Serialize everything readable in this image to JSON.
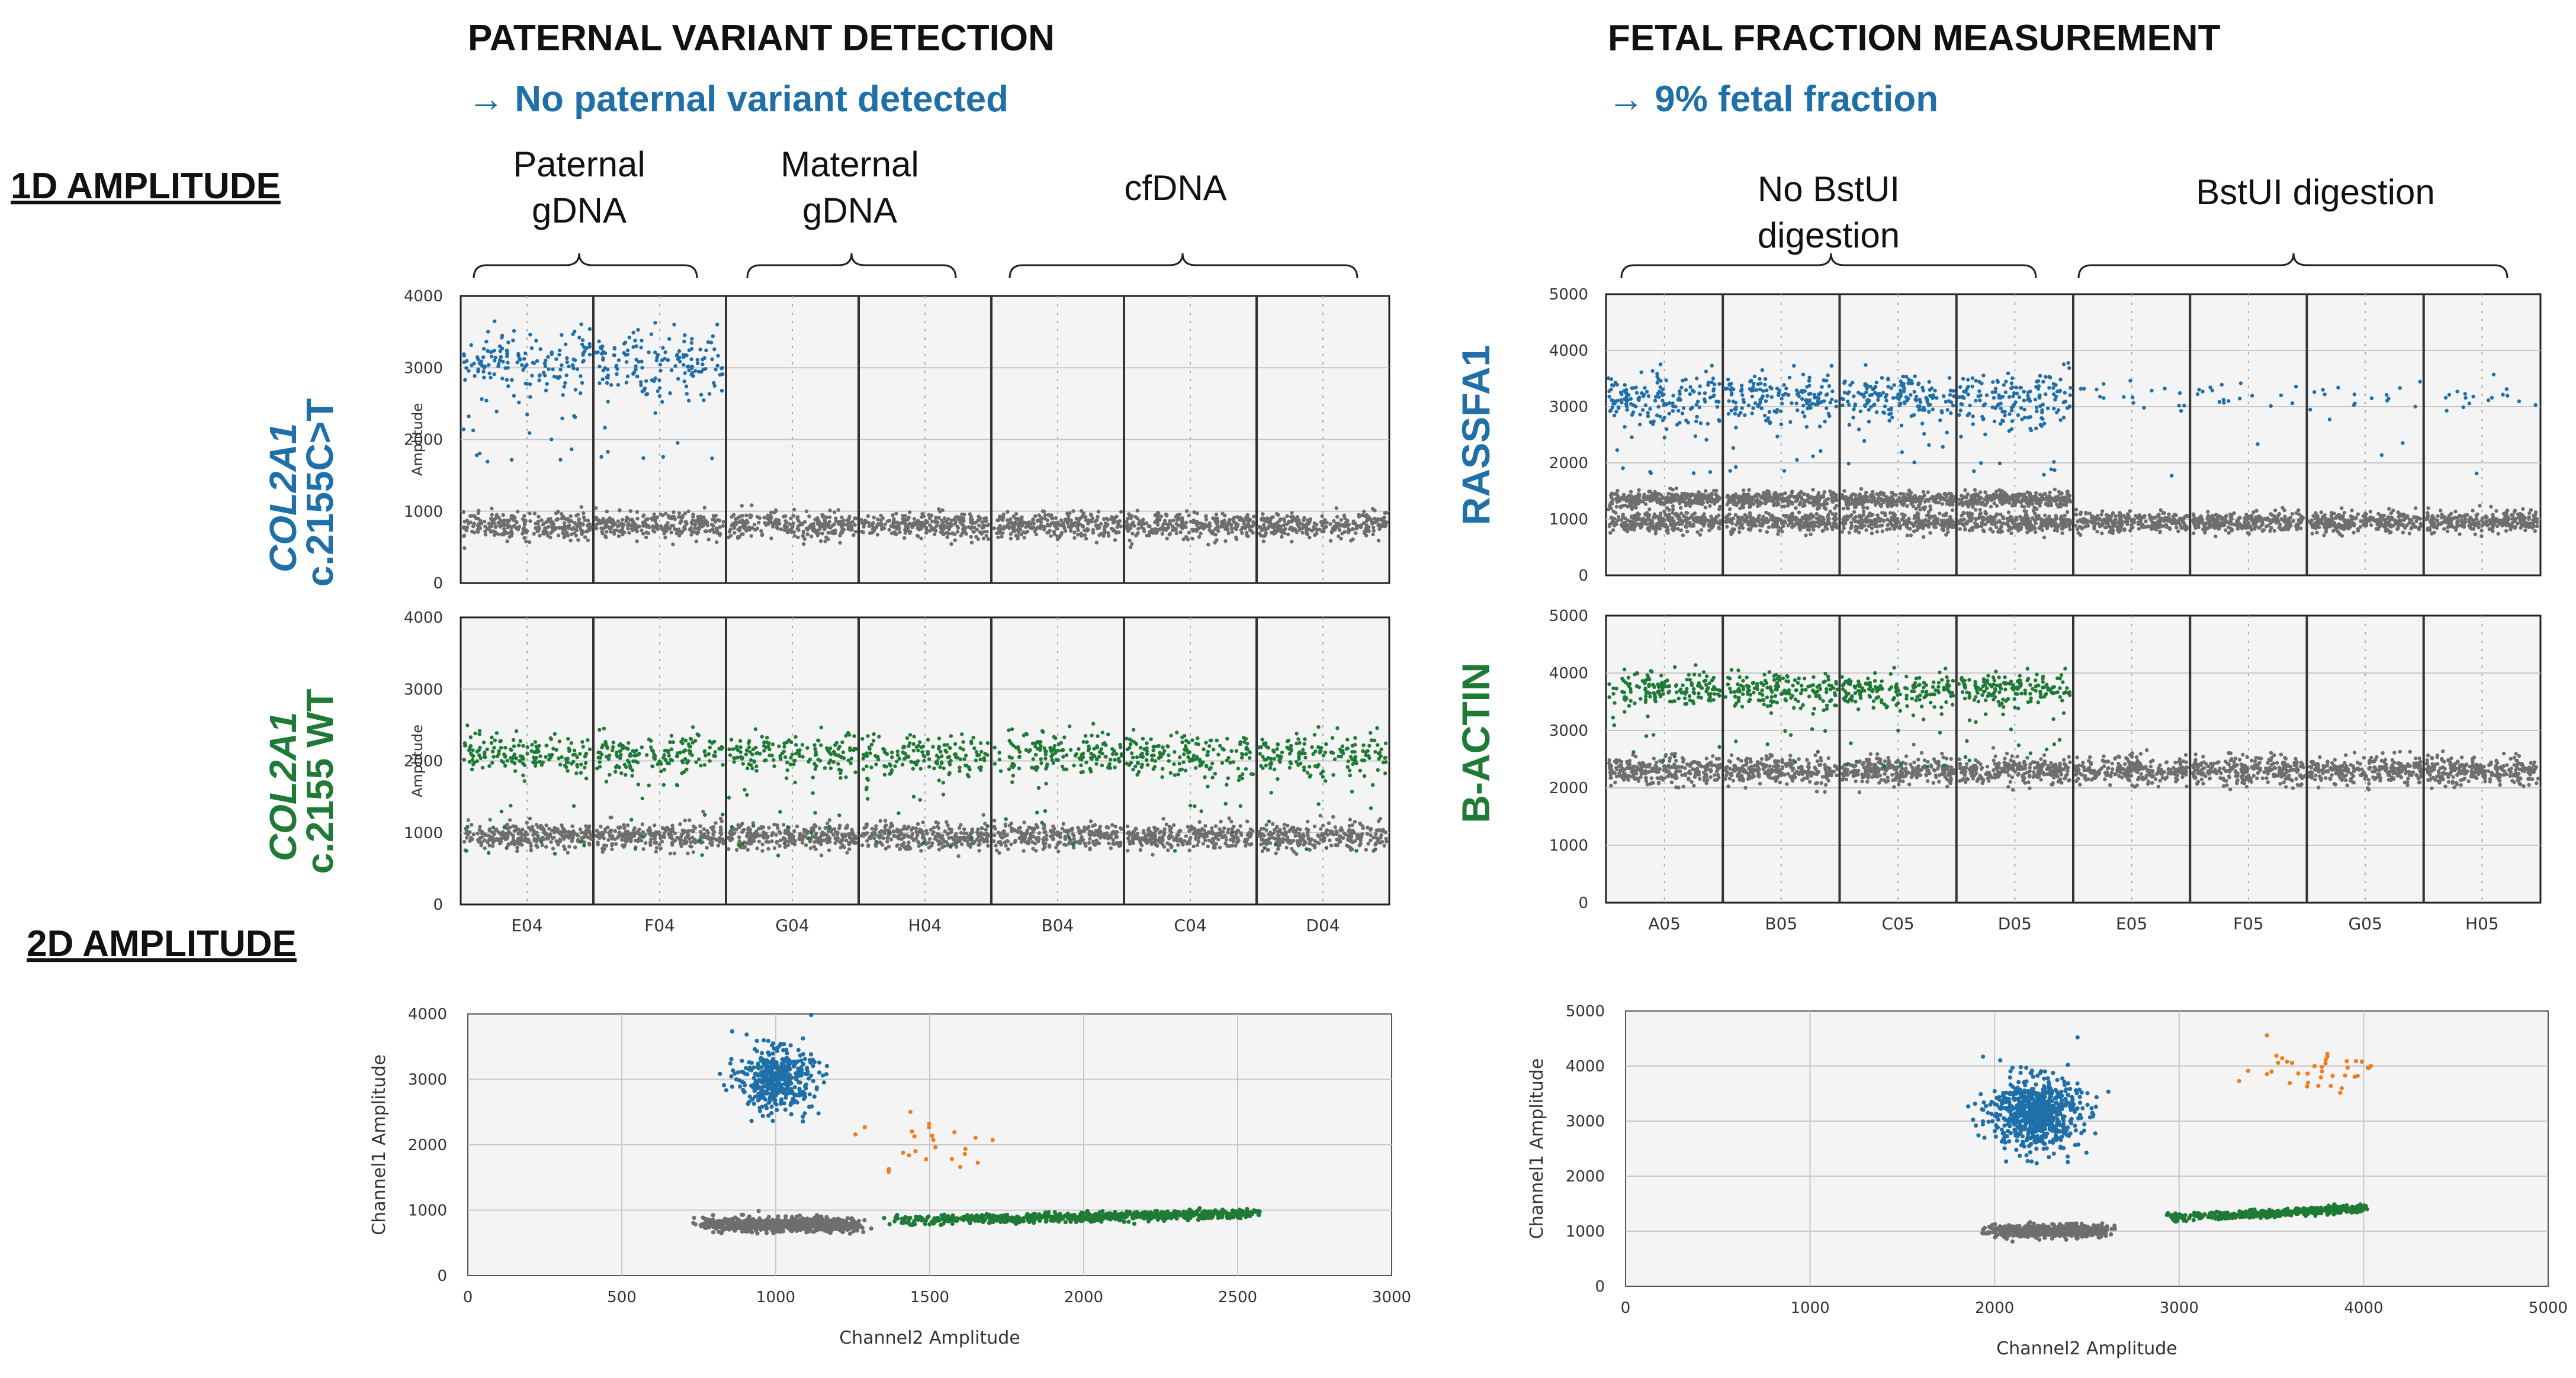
{
  "colors": {
    "blue": "#1f6fa8",
    "green": "#1e7a35",
    "gray": "#6e6e6e",
    "orange": "#ee7d1e"
  },
  "left": {
    "title": "PATERNAL VARIANT DETECTION",
    "result": "→ No paternal variant detected",
    "groups": [
      {
        "lines": [
          "Paternal",
          "gDNA"
        ]
      },
      {
        "lines": [
          "Maternal",
          "gDNA"
        ]
      },
      {
        "lines": [
          "cfDNA"
        ]
      }
    ]
  },
  "right": {
    "title": "FETAL FRACTION MEASUREMENT",
    "result": "→ 9% fetal fraction",
    "groups": [
      {
        "lines": [
          "No BstUI",
          "digestion"
        ]
      },
      {
        "lines": [
          "BstUI digestion"
        ]
      }
    ]
  },
  "sections": {
    "oneD": "1D AMPLITUDE",
    "twoD": "2D AMPLITUDE"
  },
  "row_labels": {
    "L1": {
      "italic": "COL2A1",
      "normal": "c.2155C>T"
    },
    "L2": {
      "italic": "COL2A1",
      "normal": "c.2155 WT"
    },
    "R1": {
      "italic": "",
      "normal": "RASSFA1"
    },
    "R2": {
      "italic": "",
      "normal": "B-ACTIN"
    }
  },
  "chart_data": [
    {
      "id": "L1",
      "type": "scatter",
      "ylabel": "Amplitude",
      "ylim": [
        0,
        4000
      ],
      "yticks": [
        0,
        1000,
        2000,
        3000,
        4000
      ],
      "wells": [
        "E04",
        "F04",
        "G04",
        "H04",
        "B04",
        "C04",
        "D04"
      ],
      "series": [
        {
          "name": "negative",
          "color": "gray",
          "center": 800,
          "spread": 90,
          "wells": [
            0,
            1,
            2,
            3,
            4,
            5,
            6
          ]
        },
        {
          "name": "positive",
          "color": "blue",
          "center": 3050,
          "spread": 220,
          "wells": [
            0,
            1
          ]
        }
      ]
    },
    {
      "id": "L2",
      "type": "scatter",
      "ylabel": "Amplitude",
      "ylim": [
        0,
        4000
      ],
      "yticks": [
        0,
        1000,
        2000,
        3000,
        4000
      ],
      "wells": [
        "E04",
        "F04",
        "G04",
        "H04",
        "B04",
        "C04",
        "D04"
      ],
      "show_well_labels": true,
      "series": [
        {
          "name": "negative",
          "color": "gray",
          "center": 950,
          "spread": 90,
          "wells": [
            0,
            1,
            2,
            3,
            4,
            5,
            6
          ]
        },
        {
          "name": "positive",
          "color": "green",
          "center": 2080,
          "spread": 150,
          "wells": [
            0,
            1,
            2,
            3,
            4,
            5,
            6
          ]
        }
      ]
    },
    {
      "id": "R1",
      "type": "scatter",
      "ylabel": "",
      "ylim": [
        0,
        5000
      ],
      "yticks": [
        0,
        1000,
        2000,
        3000,
        4000,
        5000
      ],
      "wells": [
        "A05",
        "B05",
        "C05",
        "D05",
        "E05",
        "F05",
        "G05",
        "H05"
      ],
      "series": [
        {
          "name": "negative",
          "color": "gray",
          "center": 950,
          "spread": 90,
          "wells": [
            0,
            1,
            2,
            3,
            4,
            5,
            6,
            7
          ]
        },
        {
          "name": "negative-upper",
          "color": "gray",
          "center": 1350,
          "spread": 70,
          "wells": [
            0,
            1,
            2,
            3
          ]
        },
        {
          "name": "positive",
          "color": "blue",
          "center": 3150,
          "spread": 230,
          "wells": [
            0,
            1,
            2,
            3
          ]
        },
        {
          "name": "positive-sparse",
          "color": "blue",
          "center": 3150,
          "spread": 150,
          "wells": [
            4,
            5,
            6,
            7
          ]
        }
      ]
    },
    {
      "id": "R2",
      "type": "scatter",
      "ylabel": "",
      "ylim": [
        0,
        5000
      ],
      "yticks": [
        0,
        1000,
        2000,
        3000,
        4000,
        5000
      ],
      "wells": [
        "A05",
        "B05",
        "C05",
        "D05",
        "E05",
        "F05",
        "G05",
        "H05"
      ],
      "show_well_labels": true,
      "series": [
        {
          "name": "negative",
          "color": "gray",
          "center": 2300,
          "spread": 120,
          "wells": [
            0,
            1,
            2,
            3,
            4,
            5,
            6,
            7
          ]
        },
        {
          "name": "positive",
          "color": "green",
          "center": 3700,
          "spread": 150,
          "wells": [
            0,
            1,
            2,
            3
          ]
        }
      ]
    },
    {
      "id": "L2D",
      "type": "scatter",
      "xlabel": "Channel2 Amplitude",
      "ylabel": "Channel1 Amplitude",
      "xlim": [
        0,
        3000
      ],
      "ylim": [
        0,
        4000
      ],
      "xticks": [
        0,
        500,
        1000,
        1500,
        2000,
        2500,
        3000
      ],
      "yticks": [
        0,
        1000,
        2000,
        3000,
        4000
      ],
      "clusters": [
        {
          "color": "gray",
          "x": [
            750,
            1250
          ],
          "y": [
            780,
            120
          ],
          "n": 700
        },
        {
          "color": "blue",
          "x": [
            1000,
            60
          ],
          "y": [
            3000,
            230
          ],
          "n": 450
        },
        {
          "color": "green",
          "x": [
            1350,
            2550
          ],
          "y": [
            850,
            950
          ],
          "n": 700
        },
        {
          "color": "orange",
          "x": [
            1500,
            120
          ],
          "y": [
            2000,
            300
          ],
          "n": 24
        }
      ]
    },
    {
      "id": "R2D",
      "type": "scatter",
      "xlabel": "Channel2 Amplitude",
      "ylabel": "Channel1 Amplitude",
      "xlim": [
        0,
        5000
      ],
      "ylim": [
        0,
        5000
      ],
      "xticks": [
        0,
        1000,
        2000,
        3000,
        4000,
        5000
      ],
      "yticks": [
        0,
        1000,
        2000,
        3000,
        4000,
        5000
      ],
      "clusters": [
        {
          "color": "gray",
          "x": [
            1950,
            2600
          ],
          "y": [
            1000,
            80
          ],
          "n": 550
        },
        {
          "color": "blue",
          "x": [
            2220,
            120
          ],
          "y": [
            3150,
            320
          ],
          "n": 700
        },
        {
          "color": "green",
          "x": [
            2900,
            4000
          ],
          "y": [
            1250,
            1420
          ],
          "n": 450
        },
        {
          "color": "orange",
          "x": [
            3700,
            180
          ],
          "y": [
            3950,
            200
          ],
          "n": 38
        }
      ]
    }
  ]
}
